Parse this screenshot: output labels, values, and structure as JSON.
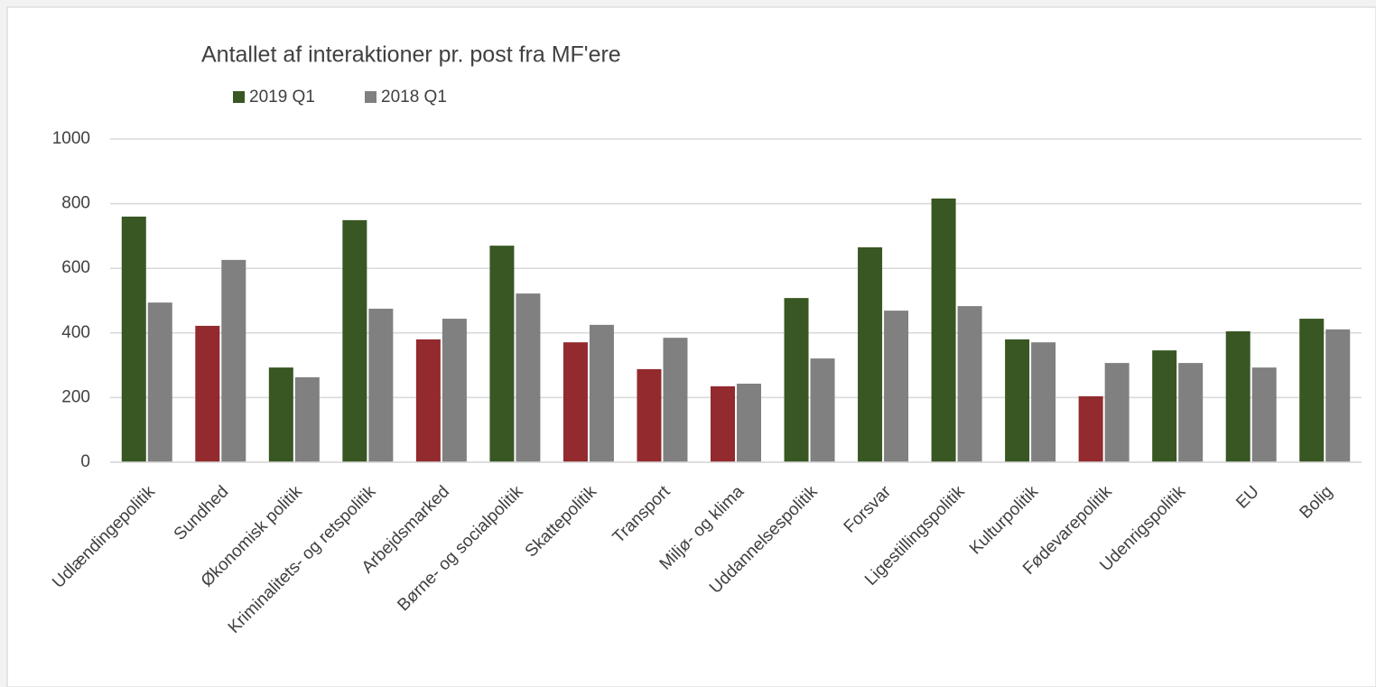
{
  "chart_data": {
    "type": "bar",
    "title": "Antallet af interaktioner pr. post fra MF'ere",
    "categories": [
      "Udlændingepolitik",
      "Sundhed",
      "Økonomisk politik",
      "Kriminalitets- og retspolitik",
      "Arbejdsmarked",
      "Børne- og socialpolitik",
      "Skattepolitik",
      "Transport",
      "Miljø- og klima",
      "Uddannelsespolitik",
      "Forsvar",
      "Ligestillingspolitik",
      "Kulturpolitik",
      "Fødevarepolitik",
      "Udenrigspolitik",
      "EU",
      "Bolig"
    ],
    "series": [
      {
        "name": "2019 Q1",
        "color": "#385723",
        "colors": [
          "#385723",
          "#922a2e",
          "#385723",
          "#385723",
          "#922a2e",
          "#385723",
          "#922a2e",
          "#922a2e",
          "#922a2e",
          "#385723",
          "#385723",
          "#385723",
          "#385723",
          "#922a2e",
          "#385723",
          "#385723",
          "#385723"
        ],
        "values": [
          760,
          422,
          293,
          749,
          380,
          670,
          371,
          288,
          235,
          508,
          665,
          816,
          380,
          204,
          346,
          405,
          444
        ]
      },
      {
        "name": "2018 Q1",
        "color": "#808080",
        "values": [
          494,
          626,
          263,
          475,
          444,
          522,
          425,
          385,
          243,
          321,
          469,
          483,
          371,
          307,
          307,
          293,
          411
        ]
      }
    ],
    "ylim": [
      0,
      1000
    ],
    "yticks": [
      0,
      200,
      400,
      600,
      800,
      1000
    ],
    "grid": true
  }
}
